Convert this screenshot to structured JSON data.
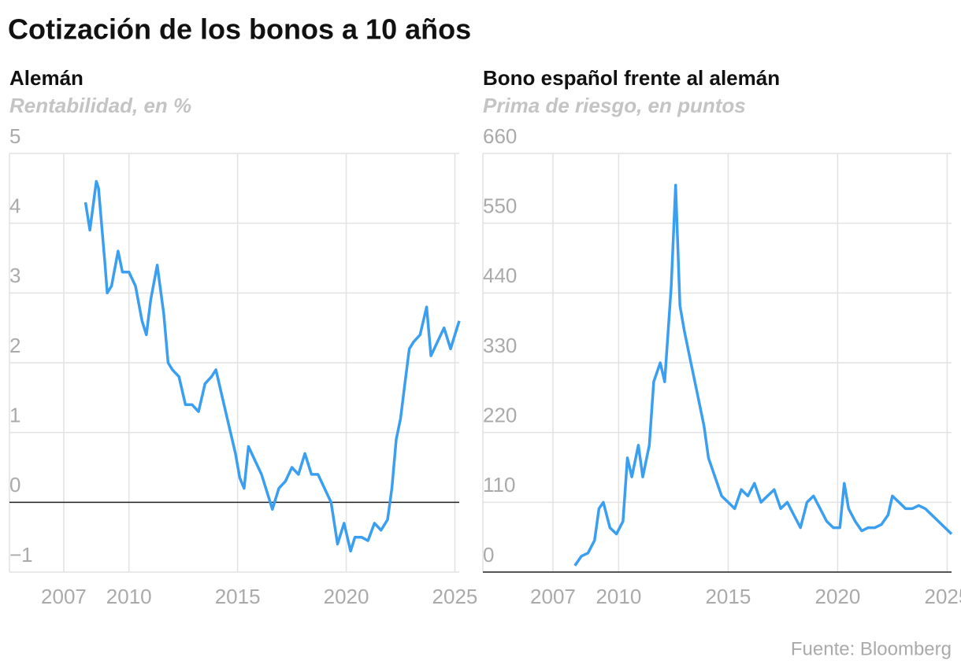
{
  "title": "Cotización de los bonos a 10 años",
  "source": "Fuente: Bloomberg",
  "chart_data": [
    {
      "type": "line",
      "title": "Alemán",
      "subtitle": "Rentabilidad, en %",
      "color": "#3a9ff0",
      "xlim": [
        2004.5,
        2025.2
      ],
      "xticks": [
        2007,
        2010,
        2015,
        2020,
        2025
      ],
      "ylim": [
        -1,
        5
      ],
      "yticks": [
        {
          "value": -1,
          "label": "−1"
        },
        0,
        1,
        2,
        3,
        4,
        5
      ],
      "grid": true,
      "x": [
        2008.0,
        2008.2,
        2008.5,
        2008.6,
        2008.9,
        2009.0,
        2009.2,
        2009.5,
        2009.7,
        2010.0,
        2010.3,
        2010.6,
        2010.8,
        2011.0,
        2011.3,
        2011.6,
        2011.8,
        2012.0,
        2012.3,
        2012.6,
        2012.9,
        2013.2,
        2013.5,
        2013.8,
        2014.0,
        2014.3,
        2014.6,
        2014.9,
        2015.1,
        2015.3,
        2015.5,
        2015.8,
        2016.1,
        2016.4,
        2016.6,
        2016.9,
        2017.2,
        2017.5,
        2017.8,
        2018.1,
        2018.4,
        2018.7,
        2019.0,
        2019.3,
        2019.6,
        2019.9,
        2020.2,
        2020.4,
        2020.7,
        2021.0,
        2021.3,
        2021.6,
        2021.9,
        2022.1,
        2022.3,
        2022.5,
        2022.7,
        2022.9,
        2023.1,
        2023.4,
        2023.7,
        2023.9,
        2024.2,
        2024.5,
        2024.8,
        2025.0,
        2025.2
      ],
      "values": [
        4.3,
        3.9,
        4.6,
        4.5,
        3.4,
        3.0,
        3.1,
        3.6,
        3.3,
        3.3,
        3.1,
        2.6,
        2.4,
        2.9,
        3.4,
        2.7,
        2.0,
        1.9,
        1.8,
        1.4,
        1.4,
        1.3,
        1.7,
        1.8,
        1.9,
        1.5,
        1.1,
        0.7,
        0.35,
        0.2,
        0.8,
        0.6,
        0.4,
        0.1,
        -0.1,
        0.2,
        0.3,
        0.5,
        0.4,
        0.7,
        0.4,
        0.4,
        0.2,
        0.0,
        -0.6,
        -0.3,
        -0.7,
        -0.5,
        -0.5,
        -0.55,
        -0.3,
        -0.4,
        -0.25,
        0.2,
        0.9,
        1.2,
        1.7,
        2.2,
        2.3,
        2.4,
        2.8,
        2.1,
        2.3,
        2.5,
        2.2,
        2.4,
        2.6
      ]
    },
    {
      "type": "line",
      "title": "Bono español frente al alemán",
      "subtitle": "Prima de riesgo, en puntos",
      "color": "#3a9ff0",
      "xlim": [
        2003.8,
        2025.2
      ],
      "xticks": [
        2007,
        2010,
        2015,
        2020,
        2025
      ],
      "ylim": [
        0,
        660
      ],
      "yticks": [
        0,
        110,
        220,
        330,
        440,
        550,
        660
      ],
      "grid": true,
      "x": [
        2008.0,
        2008.3,
        2008.6,
        2008.9,
        2009.1,
        2009.3,
        2009.6,
        2009.9,
        2010.2,
        2010.4,
        2010.6,
        2010.9,
        2011.1,
        2011.4,
        2011.6,
        2011.9,
        2012.1,
        2012.4,
        2012.5,
        2012.6,
        2012.8,
        2013.0,
        2013.3,
        2013.6,
        2013.9,
        2014.1,
        2014.4,
        2014.7,
        2015.0,
        2015.3,
        2015.6,
        2015.9,
        2016.2,
        2016.5,
        2016.8,
        2017.1,
        2017.4,
        2017.7,
        2018.0,
        2018.3,
        2018.6,
        2018.9,
        2019.2,
        2019.5,
        2019.8,
        2020.1,
        2020.3,
        2020.5,
        2020.8,
        2021.1,
        2021.4,
        2021.7,
        2022.0,
        2022.3,
        2022.5,
        2022.8,
        2023.1,
        2023.4,
        2023.7,
        2024.0,
        2024.3,
        2024.6,
        2024.9,
        2025.2
      ],
      "values": [
        10,
        25,
        30,
        50,
        100,
        110,
        70,
        60,
        80,
        180,
        150,
        200,
        150,
        200,
        300,
        330,
        300,
        450,
        530,
        610,
        420,
        380,
        330,
        280,
        230,
        180,
        150,
        120,
        110,
        100,
        130,
        120,
        140,
        110,
        120,
        130,
        100,
        110,
        90,
        70,
        110,
        120,
        100,
        80,
        70,
        70,
        140,
        100,
        80,
        65,
        70,
        70,
        75,
        90,
        120,
        110,
        100,
        100,
        105,
        100,
        90,
        80,
        70,
        60
      ]
    }
  ]
}
